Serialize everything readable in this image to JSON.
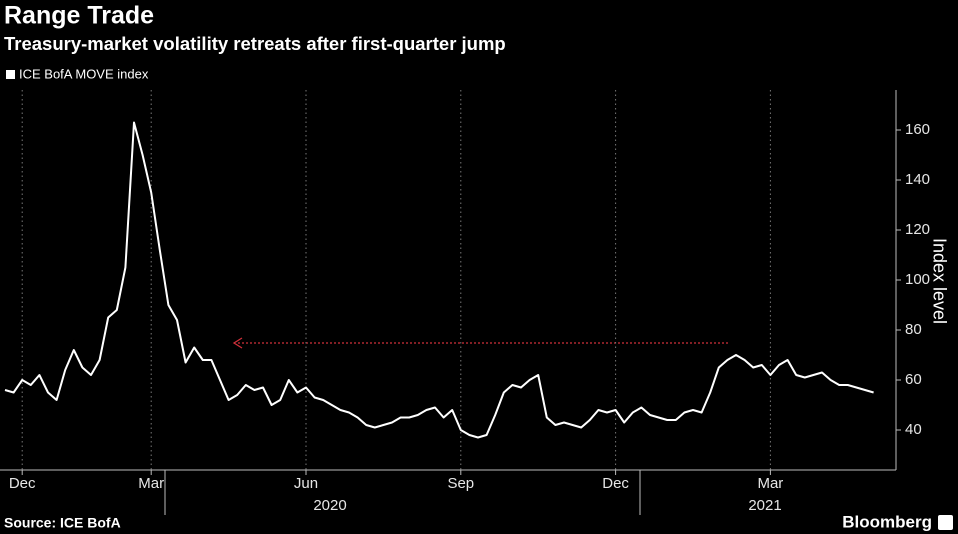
{
  "chart_data": {
    "type": "line",
    "title": "Range Trade",
    "subtitle": "Treasury-market volatility retreats after first-quarter jump",
    "y_axis_label": "Index level",
    "source": "Source: ICE BofA",
    "brand": "Bloomberg",
    "year_labels": [
      "2020",
      "2021"
    ],
    "categories": [
      null,
      null,
      "Dec",
      null,
      null,
      null,
      null,
      null,
      null,
      null,
      null,
      null,
      null,
      null,
      null,
      null,
      null,
      "Mar",
      null,
      null,
      null,
      null,
      null,
      null,
      null,
      null,
      null,
      null,
      null,
      null,
      null,
      null,
      null,
      null,
      null,
      "Jun",
      null,
      null,
      null,
      null,
      null,
      null,
      null,
      null,
      null,
      null,
      null,
      null,
      null,
      null,
      null,
      null,
      null,
      "Sep",
      null,
      null,
      null,
      null,
      null,
      null,
      null,
      null,
      null,
      null,
      null,
      null,
      null,
      null,
      null,
      null,
      null,
      "Dec",
      null,
      null,
      null,
      null,
      null,
      null,
      null,
      null,
      null,
      null,
      null,
      null,
      null,
      null,
      null,
      null,
      null,
      "Mar",
      null,
      null,
      null,
      null,
      null,
      null,
      null,
      null,
      null,
      null,
      null,
      null
    ],
    "series": [
      {
        "name": "ICE BofA MOVE index",
        "color": "#ffffff",
        "values": [
          56,
          55,
          60,
          58,
          62,
          55,
          52,
          64,
          72,
          65,
          62,
          68,
          85,
          88,
          105,
          163,
          150,
          135,
          112,
          90,
          84,
          67,
          73,
          68,
          68,
          60,
          52,
          54,
          58,
          56,
          57,
          50,
          52,
          60,
          55,
          57,
          53,
          52,
          50,
          48,
          47,
          45,
          42,
          41,
          42,
          43,
          45,
          45,
          46,
          48,
          49,
          45,
          48,
          40,
          38,
          37,
          38,
          46,
          55,
          58,
          57,
          60,
          62,
          45,
          42,
          43,
          42,
          41,
          44,
          48,
          47,
          48,
          43,
          47,
          49,
          46,
          45,
          44,
          44,
          47,
          48,
          47,
          55,
          65,
          68,
          70,
          68,
          65,
          66,
          62,
          66,
          68,
          62,
          61,
          62,
          63,
          60,
          58,
          58,
          57,
          56,
          55
        ]
      }
    ],
    "ylim": [
      24,
      176
    ],
    "yticks": [
      40,
      60,
      80,
      100,
      120,
      140,
      160
    ],
    "y_axis_side": "right",
    "grid": "vertical"
  }
}
